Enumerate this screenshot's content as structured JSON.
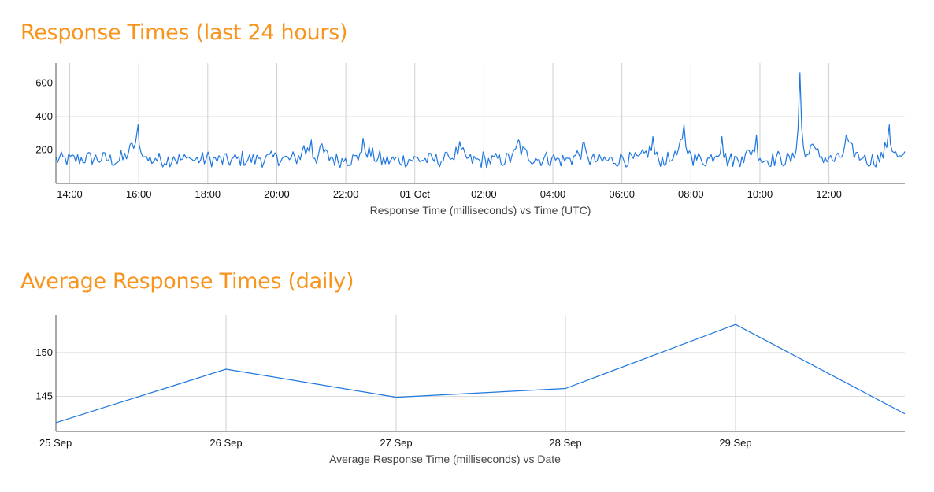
{
  "charts": [
    {
      "section_title": "Response Times (last 24 hours)",
      "chart_data": {
        "type": "line",
        "title": "Response Times (last 24 hours)",
        "xlabel": "Response Time (milliseconds) vs Time (UTC)",
        "ylabel": "",
        "x_tick_labels": [
          "14:00",
          "16:00",
          "18:00",
          "20:00",
          "22:00",
          "01 Oct",
          "02:00",
          "04:00",
          "06:00",
          "08:00",
          "10:00",
          "12:00"
        ],
        "y_tick_labels": [
          "200",
          "400",
          "600"
        ],
        "x_range": [
          "30 Sep 13:30",
          "01 Oct 13:30"
        ],
        "ylim": [
          0,
          720
        ],
        "grid": true,
        "line_color": "#1f77e0",
        "series": [
          {
            "x_hours": [
              -0.4,
              0,
              0.5,
              1.0,
              1.5,
              1.98,
              2.05,
              2.15,
              2.5,
              3.0,
              3.5,
              4.0,
              4.5,
              5.0,
              5.5,
              6.0,
              6.5,
              6.8,
              7.0,
              7.1,
              7.3,
              7.6,
              8.0,
              8.4,
              8.5,
              9.0,
              9.5,
              10.0,
              10.5,
              11.0,
              11.3,
              11.5,
              12.0,
              12.4,
              12.8,
              13.0,
              13.5,
              13.8,
              14.0,
              14.5,
              14.9,
              15.0,
              15.5,
              16.0,
              16.5,
              16.9,
              17.0,
              17.5,
              17.8,
              18.0,
              18.5,
              18.9,
              19.0,
              19.5,
              19.9,
              20.0,
              20.5,
              21.0,
              21.16,
              21.3,
              21.5,
              22.0,
              22.3,
              22.5,
              23.0,
              23.5,
              23.75,
              24.0,
              24.2
            ],
            "values": [
              160,
              150,
              170,
              160,
              140,
              350,
              190,
              160,
              150,
              160,
              150,
              160,
              140,
              160,
              150,
              170,
              150,
              230,
              260,
              150,
              240,
              150,
              150,
              170,
              270,
              140,
              150,
              160,
              150,
              160,
              250,
              150,
              140,
              150,
              160,
              260,
              150,
              170,
              150,
              150,
              250,
              150,
              140,
              160,
              150,
              280,
              160,
              150,
              350,
              170,
              150,
              280,
              150,
              160,
              290,
              150,
              160,
              150,
              660,
              150,
              240,
              150,
              150,
              290,
              150,
              160,
              350,
              150,
              180
            ]
          }
        ]
      }
    },
    {
      "section_title": "Average Response Times (daily)",
      "chart_data": {
        "type": "line",
        "title": "Average Response Times (daily)",
        "xlabel": "Average Response Time (milliseconds) vs Date",
        "ylabel": "",
        "categories": [
          "25 Sep",
          "26 Sep",
          "27 Sep",
          "28 Sep",
          "29 Sep",
          ""
        ],
        "y_tick_labels": [
          "145",
          "150"
        ],
        "ylim": [
          141,
          154.3
        ],
        "grid": true,
        "line_color": "#1f77e0",
        "series": [
          {
            "values": [
              142.0,
              148.1,
              144.9,
              145.9,
              153.2,
              143.0
            ]
          }
        ]
      }
    }
  ]
}
